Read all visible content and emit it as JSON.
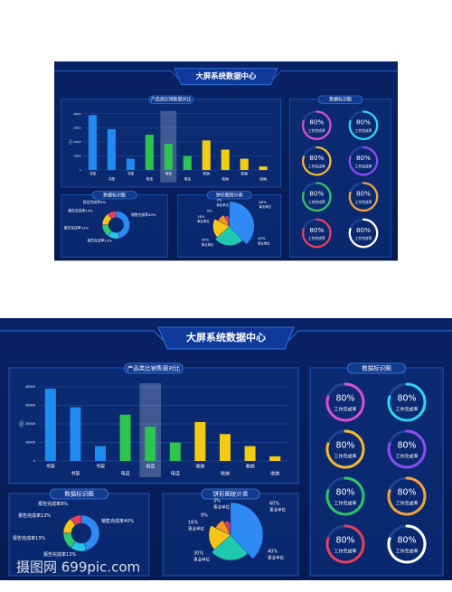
{
  "title": "大屏系统数据中心",
  "watermark": "摄图网 699pic.com",
  "chart_data": [
    {
      "type": "bar",
      "title": "产品类比销售额对比",
      "y_label": "(元)",
      "categories": [
        "书架",
        "书架",
        "书架",
        "电话",
        "电话",
        "电话",
        "收纳",
        "收纳",
        "收纳",
        "收纳"
      ],
      "values": [
        39000,
        29000,
        8000,
        25000,
        18500,
        10000,
        21000,
        14500,
        8000,
        2500
      ],
      "colors": [
        "#1f8bf0",
        "#1f8bf0",
        "#1f8bf0",
        "#2ec44f",
        "#2ec44f",
        "#2ec44f",
        "#f2cc12",
        "#f2cc12",
        "#f2cc12",
        "#f2cc12"
      ],
      "ylim": [
        0,
        40000
      ],
      "yticks": [
        0,
        10000,
        20000,
        30000,
        40000
      ],
      "grid": true
    },
    {
      "type": "ring",
      "title": "数据标识图",
      "label": "工作完成率",
      "values": [
        80,
        80,
        80,
        80,
        80,
        80,
        80,
        80
      ],
      "value_labels": [
        "80%",
        "80%",
        "80%",
        "80%",
        "80%",
        "80%",
        "80%",
        "80%"
      ],
      "colors": [
        "#d84fd0",
        "#2fd4f0",
        "#f5b82e",
        "#8a4cf0",
        "#2ec46a",
        "#f5a23a",
        "#e8405a",
        "#ffffff"
      ]
    },
    {
      "type": "donut",
      "title": "数据标识图",
      "categories": [
        "报告完成率",
        "报告完成率",
        "报告完成率",
        "报告完成率",
        "销售完成率"
      ],
      "values": [
        9,
        13,
        13,
        13,
        40
      ],
      "value_labels": [
        "9%",
        "13%",
        "13%",
        "13%",
        "40%"
      ],
      "colors": [
        "#e8405a",
        "#f5c518",
        "#2ecc71",
        "#27c4e8",
        "#2f8af5"
      ]
    },
    {
      "type": "pie",
      "title": "饼形图统计表",
      "categories": [
        "事业单位",
        "事业单位",
        "事业单位",
        "事业单位",
        null,
        "事业单位"
      ],
      "values": [
        60,
        40,
        30,
        16,
        9,
        3
      ],
      "value_labels": [
        "60%",
        "40%",
        "30%",
        "16%",
        "9%",
        "3%"
      ],
      "colors": [
        "#2f8af5",
        "#1fc9b0",
        "#f5c518",
        "#f59a23",
        "#e8405a",
        "#8a5cf0"
      ]
    }
  ]
}
